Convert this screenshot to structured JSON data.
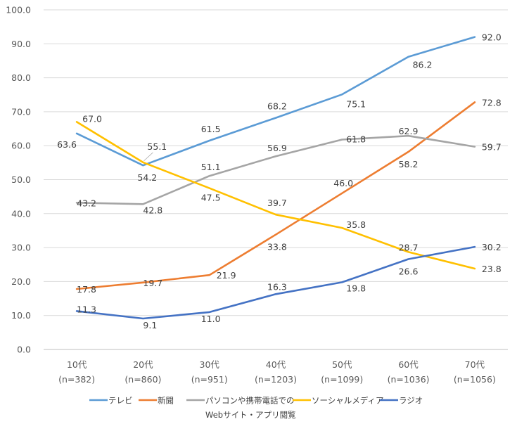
{
  "chart_data": {
    "type": "line",
    "title": "",
    "xlabel": "",
    "ylabel": "",
    "ylim": [
      0,
      100
    ],
    "yticks": [
      "0.0",
      "10.0",
      "20.0",
      "30.0",
      "40.0",
      "50.0",
      "60.0",
      "70.0",
      "80.0",
      "90.0",
      "100.0"
    ],
    "grid": true,
    "legend_position": "bottom",
    "categories": [
      {
        "label": "10代",
        "n": "(n=382)"
      },
      {
        "label": "20代",
        "n": "(n=860)"
      },
      {
        "label": "30代",
        "n": "(n=951)"
      },
      {
        "label": "40代",
        "n": "(n=1203)"
      },
      {
        "label": "50代",
        "n": "(n=1099)"
      },
      {
        "label": "60代",
        "n": "(n=1036)"
      },
      {
        "label": "70代",
        "n": "(n=1056)"
      }
    ],
    "series": [
      {
        "name": "テレビ",
        "color": "#5B9BD5",
        "values": [
          63.6,
          54.2,
          61.5,
          68.2,
          75.1,
          86.2,
          92.0
        ],
        "labels": [
          "63.6",
          "54.2",
          "61.5",
          "68.2",
          "75.1",
          "86.2",
          "92.0"
        ]
      },
      {
        "name": "新聞",
        "color": "#ED7D31",
        "values": [
          17.8,
          19.7,
          21.9,
          33.8,
          46.0,
          58.2,
          72.8
        ],
        "labels": [
          "17.8",
          "19.7",
          "21.9",
          "33.8",
          "46.0",
          "58.2",
          "72.8"
        ]
      },
      {
        "name": "パソコンや携帯電話での",
        "name_line2": "Webサイト・アプリ閲覧",
        "color": "#A5A5A5",
        "values": [
          43.2,
          42.8,
          51.1,
          56.9,
          61.8,
          62.9,
          59.7
        ],
        "labels": [
          "43.2",
          "42.8",
          "51.1",
          "56.9",
          "61.8",
          "62.9",
          "59.7"
        ]
      },
      {
        "name": "ソーシャルメディア",
        "color": "#FFC000",
        "values": [
          67.0,
          55.1,
          47.5,
          39.7,
          35.8,
          28.7,
          23.8
        ],
        "labels": [
          "67.0",
          "55.1",
          "47.5",
          "39.7",
          "35.8",
          "28.7",
          "23.8"
        ]
      },
      {
        "name": "ラジオ",
        "color": "#4472C4",
        "values": [
          11.3,
          9.1,
          11.0,
          16.3,
          19.8,
          26.6,
          30.2
        ],
        "labels": [
          "11.3",
          "9.1",
          "11.0",
          "16.3",
          "19.8",
          "26.6",
          "30.2"
        ]
      }
    ]
  }
}
